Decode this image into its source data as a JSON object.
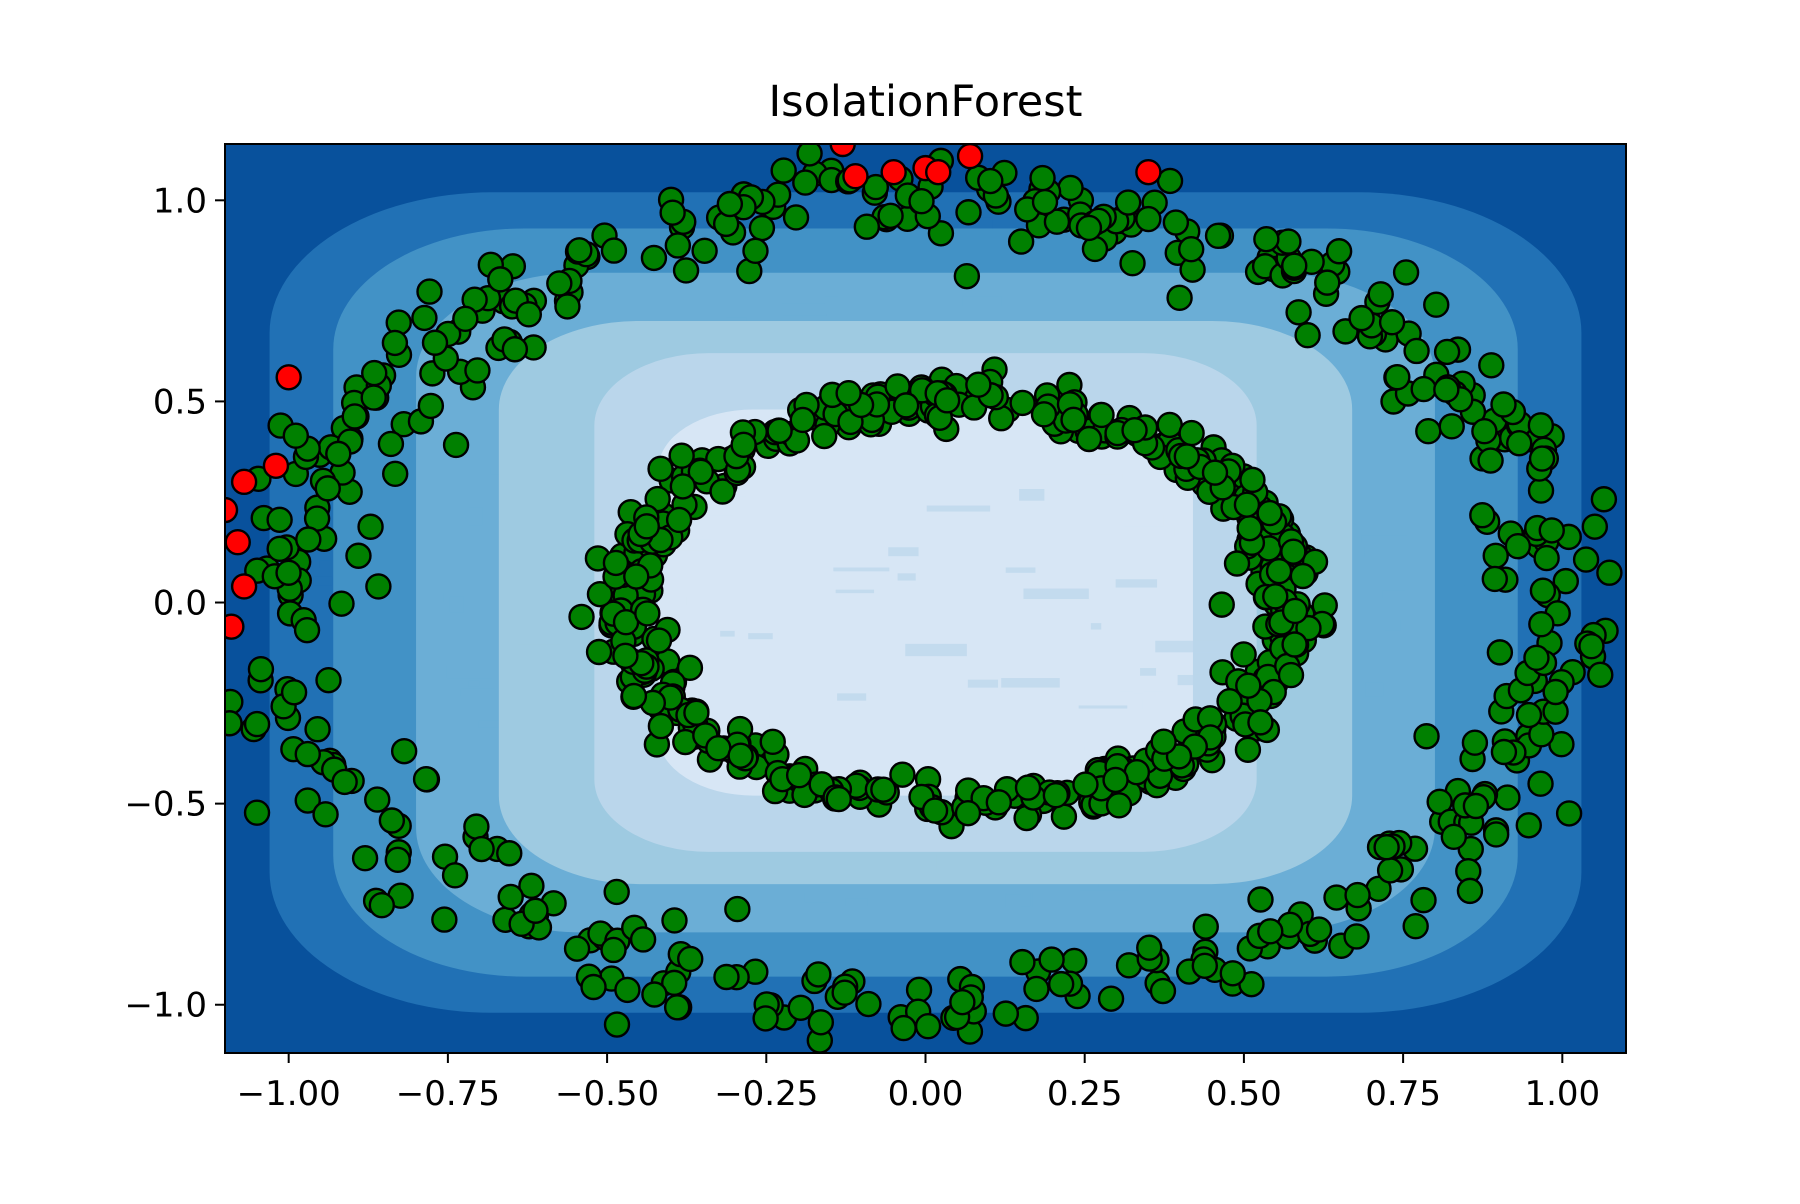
{
  "chart_data": {
    "type": "scatter",
    "title": "IsolationForest",
    "xlabel": "",
    "ylabel": "",
    "xlim": [
      -1.1,
      1.1
    ],
    "ylim": [
      -1.12,
      1.14
    ],
    "x_ticks": [
      -1.0,
      -0.75,
      -0.5,
      -0.25,
      0.0,
      0.25,
      0.5,
      0.75,
      1.0
    ],
    "x_tick_labels": [
      "−1.00",
      "−0.75",
      "−0.50",
      "−0.25",
      "0.00",
      "0.25",
      "0.50",
      "0.75",
      "1.00"
    ],
    "y_ticks": [
      -1.0,
      -0.5,
      0.0,
      0.5,
      1.0
    ],
    "y_tick_labels": [
      "−1.0",
      "−0.5",
      "0.0",
      "0.5",
      "1.0"
    ],
    "grid": false,
    "legend": "none",
    "background": {
      "type": "filled-contour",
      "colormap": "Blues",
      "levels_colors": [
        "#d7e6f5",
        "#bad6eb",
        "#9ecae1",
        "#6baed6",
        "#4292c6",
        "#2171b5",
        "#08519c"
      ]
    },
    "colors": {
      "inlier": "#008000",
      "outlier": "#ff0000",
      "edge": "#000000"
    },
    "clusters": [
      {
        "name": "inner ring",
        "center": [
          0.05,
          0.0
        ],
        "radius_x": 0.52,
        "radius_y": 0.5,
        "count": 500,
        "class": "inlier"
      },
      {
        "name": "outer ring",
        "center": [
          0.0,
          0.0
        ],
        "radius_x": 1.0,
        "radius_y": 1.0,
        "count": 500,
        "class": "inlier"
      }
    ],
    "outliers": [
      [
        -0.13,
        1.14
      ],
      [
        -0.11,
        1.06
      ],
      [
        -0.05,
        1.07
      ],
      [
        0.0,
        1.08
      ],
      [
        0.02,
        1.07
      ],
      [
        0.07,
        1.11
      ],
      [
        0.35,
        1.07
      ],
      [
        -1.0,
        0.56
      ],
      [
        -1.07,
        0.3
      ],
      [
        -1.02,
        0.34
      ],
      [
        -1.1,
        0.23
      ],
      [
        -1.08,
        0.15
      ],
      [
        -1.07,
        0.04
      ],
      [
        -1.09,
        -0.06
      ]
    ]
  }
}
